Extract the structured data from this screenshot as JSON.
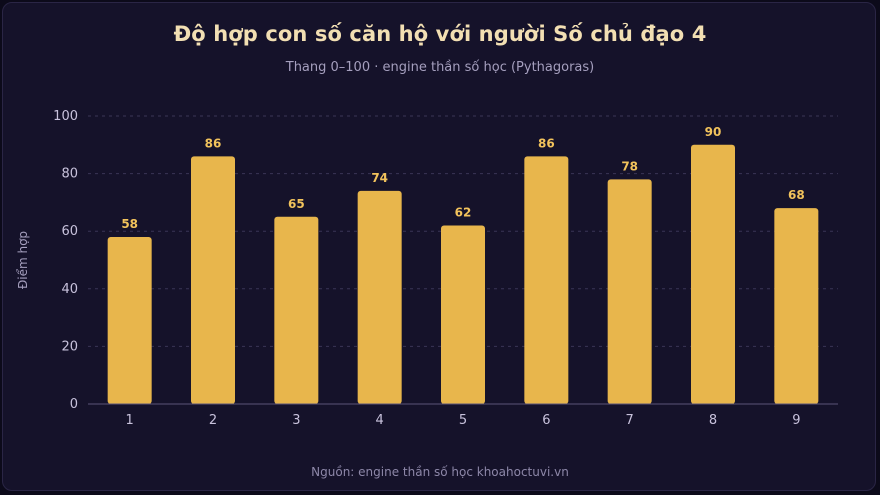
{
  "title": "Độ hợp con số căn hộ với người Số chủ đạo 4",
  "subtitle": "Thang 0–100 · engine thần số học (Pythagoras)",
  "source": "Nguồn: engine thần số học khoahoctuvi.vn",
  "colors": {
    "background": "#15122a",
    "bar": "#e8b64c",
    "data_label": "#f2c35c",
    "title": "#f2dfb3",
    "grid": "#3a3556"
  },
  "chart_data": {
    "type": "bar",
    "categories": [
      "1",
      "2",
      "3",
      "4",
      "5",
      "6",
      "7",
      "8",
      "9"
    ],
    "values": [
      58,
      86,
      65,
      74,
      62,
      86,
      78,
      90,
      68
    ],
    "xlabel": "",
    "ylabel": "Điểm hợp",
    "ylim": [
      0,
      100
    ],
    "yticks": [
      0,
      20,
      40,
      60,
      80,
      100
    ],
    "grid": true,
    "data_labels": true,
    "legend": "none"
  }
}
